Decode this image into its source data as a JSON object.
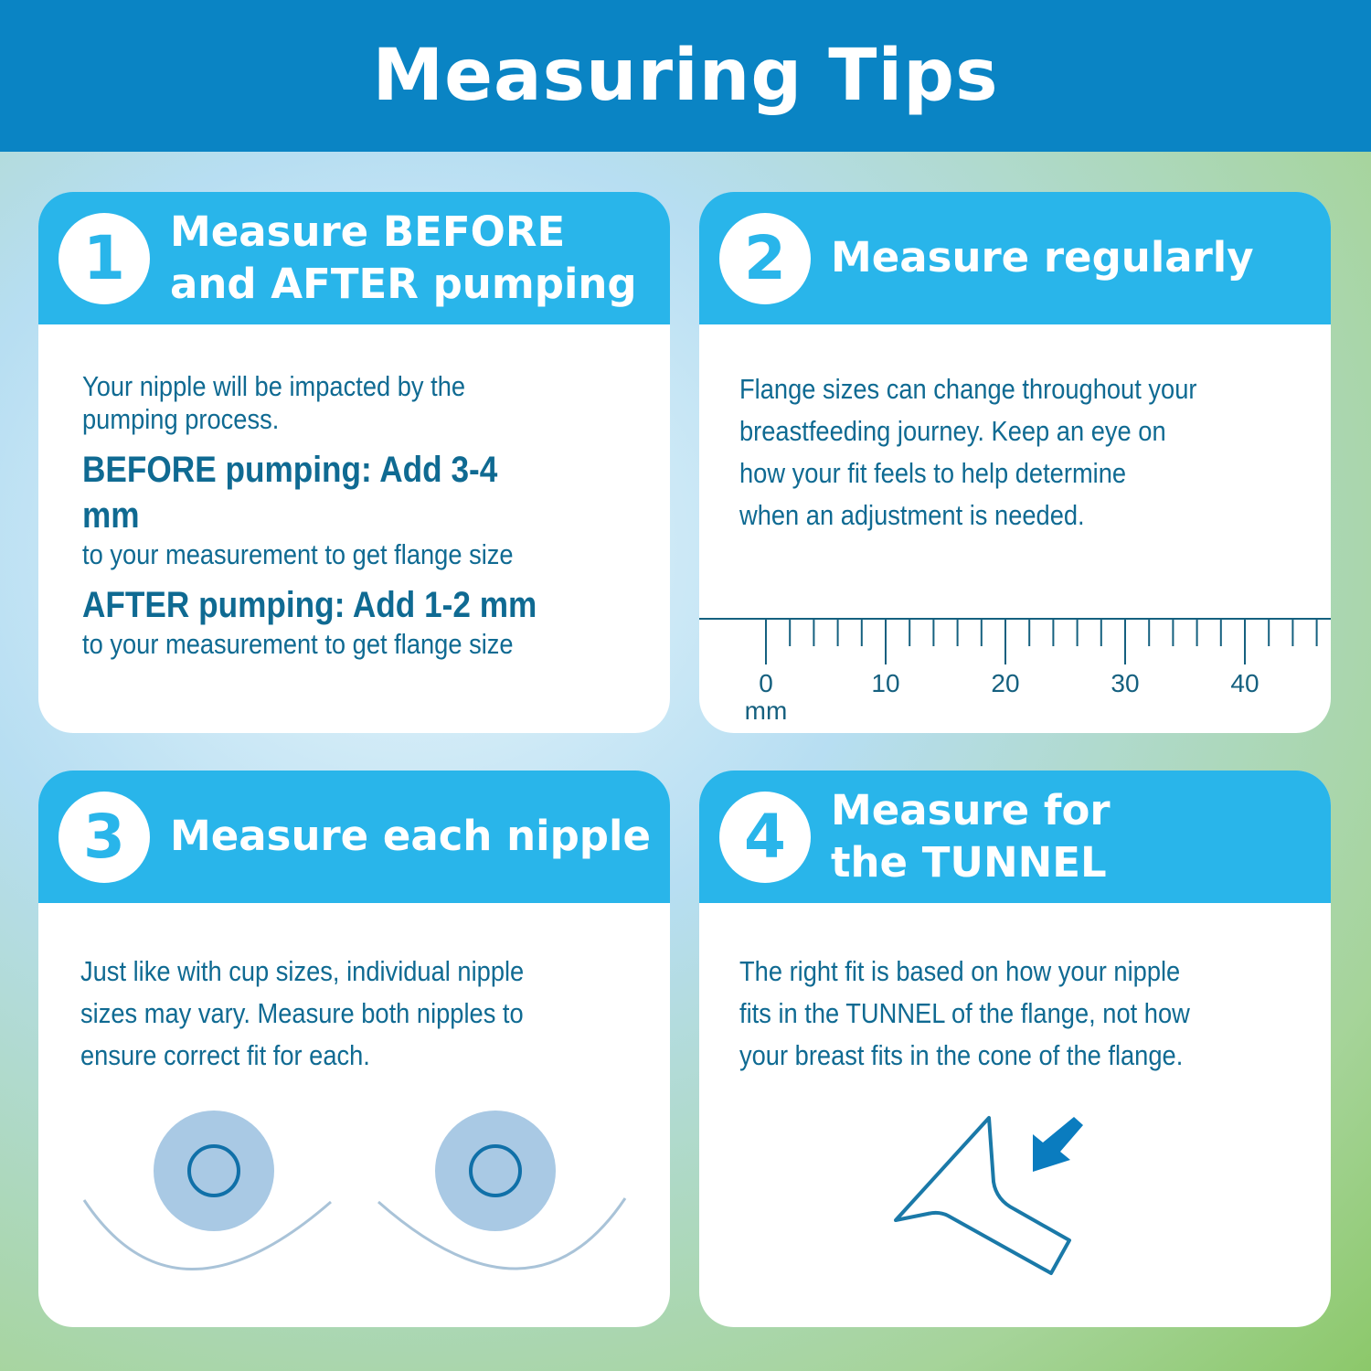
{
  "header": {
    "title": "Measuring Tips"
  },
  "tips": [
    {
      "number": "1",
      "title": "Measure BEFORE\nand AFTER pumping",
      "text": "Your nipple will be impacted by the\npumping process.",
      "before_label": "BEFORE pumping: Add 3-4 mm",
      "before_text": "to your measurement to get flange size",
      "after_label": "AFTER pumping: Add 1-2 mm",
      "after_text": "to your measurement to get flange size"
    },
    {
      "number": "2",
      "title": "Measure regularly",
      "text": "Flange sizes can change throughout your\nbreastfeeding journey. Keep an eye on\nhow your fit feels to help determine\nwhen an adjustment is needed.",
      "ruler": {
        "labels": [
          "0",
          "10",
          "20",
          "30",
          "40"
        ],
        "unit": "mm"
      }
    },
    {
      "number": "3",
      "title": "Measure each nipple",
      "text": "Just like with cup sizes, individual nipple\nsizes may vary. Measure both nipples to\nensure correct fit for each."
    },
    {
      "number": "4",
      "title": "Measure for\nthe TUNNEL",
      "text": "The right fit is based on how your nipple\nfits in the TUNNEL of the flange, not how\nyour breast fits in the cone of the flange."
    }
  ],
  "colors": {
    "header": "#0a84c4",
    "card_header": "#29b5ea",
    "text": "#0f6a92"
  }
}
